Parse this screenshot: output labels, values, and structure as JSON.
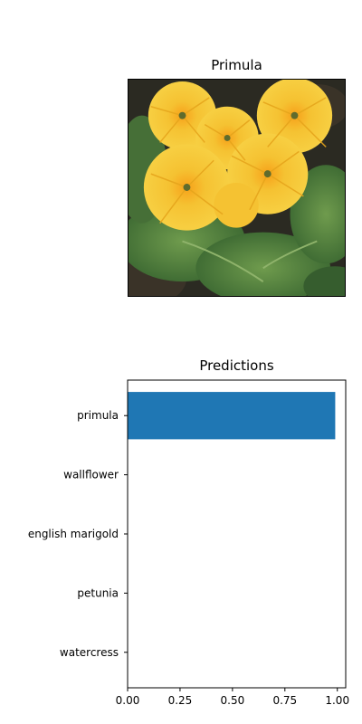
{
  "image_panel": {
    "title": "Primula",
    "description_icon": "flower-photo"
  },
  "chart_data": {
    "type": "bar",
    "orientation": "horizontal",
    "title": "Predictions",
    "categories": [
      "primula",
      "wallflower",
      "english marigold",
      "petunia",
      "watercress"
    ],
    "values": [
      0.99,
      0.0,
      0.0,
      0.0,
      0.0
    ],
    "xlim": [
      0,
      1.04
    ],
    "xticks": [
      0.0,
      0.25,
      0.5,
      0.75,
      1.0
    ],
    "xtick_labels": [
      "0.00",
      "0.25",
      "0.50",
      "0.75",
      "1.00"
    ],
    "xlabel": "",
    "ylabel": "",
    "grid": false,
    "bar_color": "#1f77b4"
  }
}
